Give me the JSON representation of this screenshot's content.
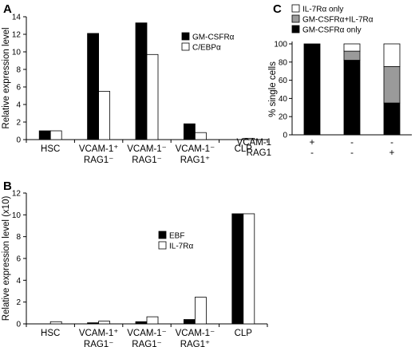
{
  "chart_data": [
    {
      "panel": "A",
      "type": "bar",
      "ylabel": "Relative expression level",
      "ylim": [
        0,
        14
      ],
      "yticks": [
        0,
        2,
        4,
        6,
        8,
        10,
        12,
        14
      ],
      "categories": [
        {
          "line1": "HSC",
          "line2": ""
        },
        {
          "line1": "VCAM-1⁺",
          "line2": "RAG1⁻"
        },
        {
          "line1": "VCAM-1⁻",
          "line2": "RAG1⁻"
        },
        {
          "line1": "VCAM-1⁻",
          "line2": "RAG1⁺"
        },
        {
          "line1": "CLP",
          "line2": ""
        }
      ],
      "series": [
        {
          "name": "GM-CSFRα",
          "color": "#000000",
          "values": [
            1.0,
            12.1,
            13.3,
            1.8,
            0.0
          ]
        },
        {
          "name": "C/EBPα",
          "color": "#ffffff",
          "values": [
            1.0,
            5.5,
            9.7,
            0.8,
            0.15
          ]
        }
      ],
      "legend": "top-right",
      "grid": false
    },
    {
      "panel": "B",
      "type": "bar",
      "ylabel": "Relative expression level (x10)",
      "ylim": [
        0,
        12
      ],
      "yticks": [
        0,
        2,
        4,
        6,
        8,
        10,
        12
      ],
      "categories": [
        {
          "line1": "HSC",
          "line2": ""
        },
        {
          "line1": "VCAM-1⁺",
          "line2": "RAG1⁻"
        },
        {
          "line1": "VCAM-1⁻",
          "line2": "RAG1⁻"
        },
        {
          "line1": "VCAM-1⁻",
          "line2": "RAG1⁺"
        },
        {
          "line1": "CLP",
          "line2": ""
        }
      ],
      "series": [
        {
          "name": "EBF",
          "color": "#000000",
          "values": [
            0.0,
            0.1,
            0.2,
            0.4,
            10.1
          ]
        },
        {
          "name": "IL-7Rα",
          "color": "#ffffff",
          "values": [
            0.2,
            0.25,
            0.65,
            2.45,
            10.1
          ]
        }
      ],
      "legend": "top-left",
      "grid": false
    },
    {
      "panel": "C",
      "type": "bar",
      "stacked": true,
      "ylabel": "% single cells",
      "ylim": [
        0,
        100
      ],
      "yticks": [
        0,
        20,
        40,
        60,
        80,
        100
      ],
      "row_labels": [
        "VCAM-1",
        "RAG1"
      ],
      "groups": [
        {
          "vcam1": "+",
          "rag1": "-"
        },
        {
          "vcam1": "-",
          "rag1": "-"
        },
        {
          "vcam1": "-",
          "rag1": "+"
        }
      ],
      "series": [
        {
          "name": "GM-CSFRα only",
          "color": "#000000",
          "values": [
            100,
            82,
            35
          ]
        },
        {
          "name": "GM-CSFRα+IL-7Rα",
          "color": "#9a9a9a",
          "values": [
            0,
            10,
            40
          ]
        },
        {
          "name": "IL-7Rα only",
          "color": "#ffffff",
          "values": [
            0,
            8,
            25
          ]
        }
      ],
      "legend": "top",
      "grid": false
    }
  ]
}
